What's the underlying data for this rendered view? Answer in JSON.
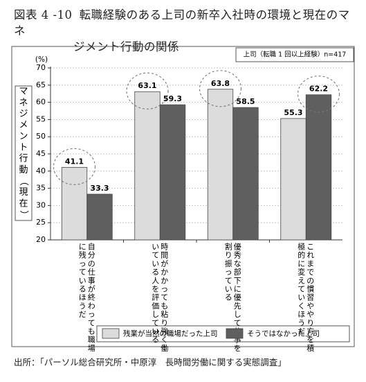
{
  "figure": {
    "number": "図表 4 -10",
    "title_line1": "転職経験のある上司の新卒入社時の環境と現在のマネ",
    "title_line2": "ジメント行動の関係"
  },
  "source": "出所：「パーソル総合研究所・中原淳　長時間労働に関する実態調査」",
  "chart_data": {
    "type": "bar",
    "title": "",
    "note": "上司（転職 1 回以上経験）n=417",
    "unit_label": "(%)",
    "ylabel": "マネジメント行動（現在）",
    "xlabel": "",
    "ylim": [
      20,
      70
    ],
    "yticks": [
      20,
      25,
      30,
      35,
      40,
      45,
      50,
      55,
      60,
      65,
      70
    ],
    "grid": true,
    "legend_position": "bottom",
    "categories": [
      "自分の仕事が終わっても職場に残っているほうだ",
      "時間がかかっても粘り強く働いている人を評価している",
      "優秀な部下に優先して仕事を割り振っている",
      "これまでの慣習ややり方を積極的に変えていくほうだ"
    ],
    "series": [
      {
        "name": "残業が当然の職場だった上司",
        "color": "#dcdcdc",
        "values": [
          41.1,
          63.1,
          63.8,
          55.3
        ]
      },
      {
        "name": "そうではなかった上司",
        "color": "#5f5f5f",
        "values": [
          33.3,
          59.3,
          58.5,
          62.2
        ]
      }
    ],
    "data_labels": [
      [
        "41.1",
        "63.1",
        "63.8",
        "55.3"
      ],
      [
        "33.3",
        "59.3",
        "58.5",
        "62.2"
      ]
    ],
    "highlighted": [
      [
        0,
        0
      ],
      [
        0,
        1
      ],
      [
        0,
        2
      ],
      [
        1,
        3
      ]
    ]
  }
}
